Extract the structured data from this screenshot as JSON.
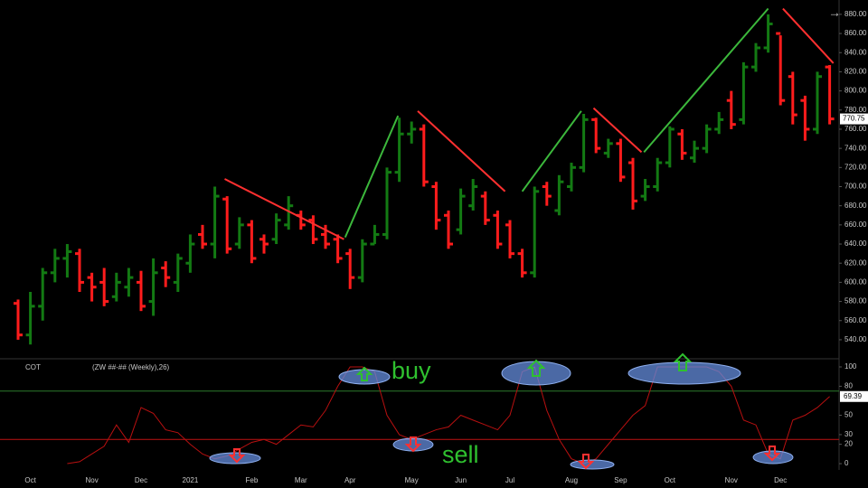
{
  "chart_data": [
    {
      "type": "ohlc",
      "categories": [
        null,
        "Oct",
        null,
        null,
        null,
        null,
        "Nov",
        null,
        null,
        null,
        "Dec",
        null,
        null,
        null,
        "2021",
        null,
        null,
        null,
        null,
        "Feb",
        null,
        null,
        null,
        "Mar",
        null,
        null,
        null,
        "Apr",
        null,
        null,
        null,
        null,
        "May",
        null,
        null,
        null,
        "Jun",
        null,
        null,
        null,
        "Jul",
        null,
        null,
        null,
        null,
        "Aug",
        null,
        null,
        null,
        "Sep",
        null,
        null,
        null,
        "Oct",
        null,
        null,
        null,
        null,
        "Nov",
        null,
        null,
        null,
        "Dec",
        null,
        null,
        null,
        null
      ],
      "open": [
        578,
        545,
        575,
        610,
        625,
        630,
        605,
        600,
        585,
        595,
        600,
        580,
        615,
        600,
        620,
        650,
        640,
        687,
        640,
        660,
        645,
        645,
        660,
        670,
        665,
        650,
        645,
        630,
        605,
        640,
        650,
        715,
        755,
        760,
        700,
        670,
        655,
        680,
        690,
        670,
        660,
        630,
        610,
        700,
        675,
        700,
        720,
        770,
        735,
        745,
        725,
        690,
        700,
        725,
        755,
        730,
        740,
        760,
        790,
        770,
        825,
        845,
        860,
        815,
        790,
        760,
        825
      ],
      "high": [
        582,
        590,
        615,
        635,
        640,
        635,
        610,
        615,
        610,
        615,
        612,
        625,
        622,
        630,
        650,
        660,
        700,
        690,
        668,
        665,
        650,
        672,
        690,
        675,
        670,
        660,
        650,
        635,
        645,
        660,
        720,
        772,
        768,
        765,
        705,
        675,
        698,
        708,
        695,
        675,
        665,
        635,
        700,
        705,
        712,
        725,
        776,
        772,
        750,
        750,
        730,
        708,
        730,
        763,
        760,
        748,
        765,
        778,
        800,
        830,
        850,
        880,
        858,
        820,
        795,
        820,
        827
      ],
      "low": [
        540,
        535,
        560,
        600,
        605,
        590,
        580,
        575,
        580,
        585,
        570,
        565,
        595,
        590,
        610,
        635,
        625,
        630,
        635,
        620,
        630,
        640,
        655,
        655,
        640,
        635,
        620,
        593,
        600,
        640,
        645,
        705,
        745,
        700,
        655,
        635,
        650,
        675,
        660,
        635,
        625,
        605,
        605,
        680,
        670,
        695,
        715,
        735,
        730,
        705,
        676,
        685,
        695,
        720,
        728,
        725,
        735,
        755,
        760,
        765,
        820,
        840,
        785,
        765,
        748,
        755,
        765
      ],
      "close": [
        545,
        575,
        610,
        625,
        632,
        600,
        595,
        580,
        600,
        605,
        575,
        610,
        605,
        625,
        640,
        640,
        690,
        635,
        660,
        625,
        640,
        665,
        680,
        660,
        645,
        640,
        625,
        605,
        640,
        650,
        715,
        755,
        760,
        705,
        665,
        640,
        690,
        700,
        665,
        640,
        630,
        610,
        695,
        690,
        705,
        720,
        770,
        740,
        745,
        710,
        685,
        700,
        725,
        760,
        735,
        740,
        760,
        770,
        765,
        825,
        845,
        870,
        790,
        775,
        760,
        815,
        770.75
      ],
      "up_color": "#137a13",
      "down_color": "#ff1c1c",
      "ylim": [
        522,
        895
      ],
      "yticks": [
        {
          "value": 540,
          "label": "540.00"
        },
        {
          "value": 560,
          "label": "560.00"
        },
        {
          "value": 580,
          "label": "580.00"
        },
        {
          "value": 600,
          "label": "600.00"
        },
        {
          "value": 620,
          "label": "620.00"
        },
        {
          "value": 640,
          "label": "640.00"
        },
        {
          "value": 660,
          "label": "660.00"
        },
        {
          "value": 680,
          "label": "680.00"
        },
        {
          "value": 700,
          "label": "700.00"
        },
        {
          "value": 720,
          "label": "720.00"
        },
        {
          "value": 740,
          "label": "740.00"
        },
        {
          "value": 760,
          "label": "760.00"
        },
        {
          "value": 780,
          "label": "780.00"
        },
        {
          "value": 800,
          "label": "800.00"
        },
        {
          "value": 820,
          "label": "820.00"
        },
        {
          "value": 840,
          "label": "840.00"
        },
        {
          "value": 860,
          "label": "860.00"
        },
        {
          "value": 880,
          "label": "880.00"
        }
      ],
      "last_value": 770.75,
      "trendlines": [
        {
          "x": [
            16.8,
            26.5
          ],
          "y": [
            708,
            645
          ],
          "color": "#ff3030"
        },
        {
          "x": [
            26.6,
            30.9
          ],
          "y": [
            647,
            774
          ],
          "color": "#3cb83c"
        },
        {
          "x": [
            32.5,
            39.6
          ],
          "y": [
            779,
            695
          ],
          "color": "#ff3030"
        },
        {
          "x": [
            41,
            45.8
          ],
          "y": [
            695,
            779
          ],
          "color": "#3cb83c"
        },
        {
          "x": [
            46.8,
            50.7
          ],
          "y": [
            782,
            736
          ],
          "color": "#ff3030"
        },
        {
          "x": [
            50.9,
            61
          ],
          "y": [
            736,
            886
          ],
          "color": "#3cb83c"
        },
        {
          "x": [
            62.2,
            66.3
          ],
          "y": [
            886,
            829
          ],
          "color": "#ff3030"
        }
      ]
    },
    {
      "type": "line",
      "title": "COT",
      "subtitle": "(ZW ##-## (Weekly),26)",
      "values": [
        null,
        null,
        null,
        null,
        0,
        2,
        10,
        18,
        40,
        22,
        58,
        52,
        35,
        32,
        20,
        10,
        5,
        8,
        15,
        22,
        25,
        20,
        30,
        40,
        38,
        55,
        80,
        100,
        100,
        95,
        50,
        30,
        25,
        30,
        35,
        38,
        50,
        45,
        40,
        35,
        50,
        95,
        100,
        55,
        25,
        5,
        0,
        5,
        20,
        35,
        50,
        60,
        100,
        100,
        100,
        100,
        100,
        95,
        80,
        45,
        40,
        10,
        5,
        45,
        50,
        58,
        69.39
      ],
      "color": "#b81010",
      "ylim": [
        -6.5,
        108.4
      ],
      "yticks": [
        0,
        20,
        30,
        50,
        80,
        100
      ],
      "hlines": [
        {
          "value": 75,
          "color": "#2c7a2c"
        },
        {
          "value": 25,
          "color": "#c01212"
        }
      ],
      "last_value": 69.39,
      "annotations": [
        "buy",
        "sell"
      ]
    }
  ]
}
